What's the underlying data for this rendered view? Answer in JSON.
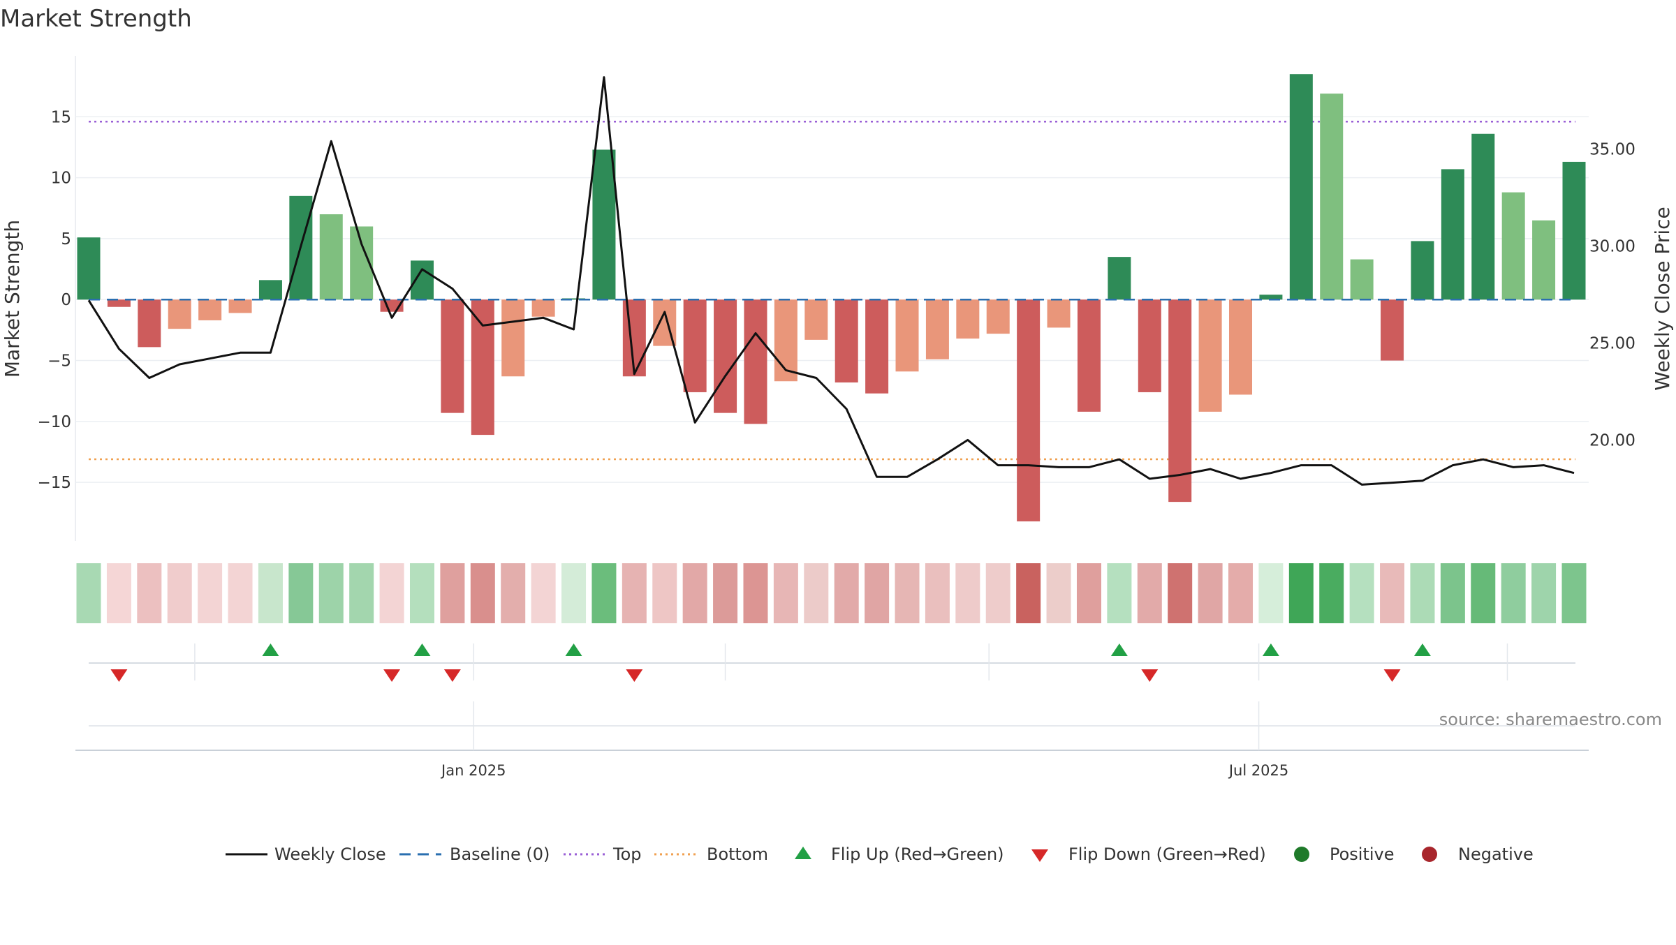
{
  "chart_data": {
    "type": "bar+line",
    "title": "Market Strength",
    "ylabel_left": "Market Strength",
    "ylabel_right": "Weekly Close Price",
    "left_ticks": [
      "15",
      "10",
      "5",
      "0",
      "−5",
      "−10",
      "−15"
    ],
    "left_tick_values": [
      15,
      10,
      5,
      0,
      -5,
      -10,
      -15
    ],
    "right_ticks": [
      "35.00",
      "30.00",
      "25.00",
      "20.00"
    ],
    "right_tick_values": [
      35,
      30,
      25,
      20
    ],
    "ylim_left": [
      -19.8,
      20.0
    ],
    "ylim_right": [
      14.8,
      39.8
    ],
    "top_line": 14.6,
    "bottom_line": -13.1,
    "baseline": 0,
    "strength": [
      5.1,
      -0.6,
      -3.9,
      -2.4,
      -1.7,
      -1.1,
      1.6,
      8.5,
      7.0,
      6.0,
      -1.0,
      3.2,
      -9.3,
      -11.1,
      -6.3,
      -1.4,
      0.1,
      12.3,
      -6.3,
      -3.8,
      -7.6,
      -9.3,
      -10.2,
      -6.7,
      -3.3,
      -6.8,
      -7.7,
      -5.9,
      -4.9,
      -3.2,
      -2.8,
      -18.2,
      -2.3,
      -9.2,
      3.5,
      -7.6,
      -16.6,
      -9.2,
      -7.8,
      0.4,
      18.5,
      16.9,
      3.3,
      -5.0,
      4.8,
      10.7,
      13.6,
      8.8,
      6.5,
      11.3
    ],
    "weekly_close": [
      27.2,
      24.7,
      23.2,
      23.9,
      24.2,
      24.5,
      24.5,
      30.0,
      35.4,
      30.1,
      26.3,
      28.8,
      27.8,
      25.9,
      26.1,
      26.3,
      25.7,
      38.7,
      23.4,
      26.6,
      20.9,
      23.3,
      25.5,
      23.6,
      23.2,
      21.6,
      18.1,
      18.1,
      19.0,
      20.0,
      18.7,
      18.7,
      18.6,
      18.6,
      19.0,
      18.0,
      18.2,
      18.5,
      18.0,
      18.3,
      18.7,
      18.7,
      17.7,
      17.8,
      17.9,
      18.7,
      19.0,
      18.6,
      18.7,
      18.3
    ],
    "heat_colors": [
      "#a8d9b3",
      "#f5d6d6",
      "#ecc0c0",
      "#f0cccc",
      "#f3d4d4",
      "#f3d4d4",
      "#c8e6cc",
      "#86c896",
      "#9dd3a9",
      "#a3d6ae",
      "#f3d4d4",
      "#b4dfbd",
      "#dfa09e",
      "#d98f8d",
      "#e3aeac",
      "#f3d4d4",
      "#d4ecd8",
      "#6bbd7c",
      "#e6b3b2",
      "#eec6c5",
      "#e2a8a7",
      "#dc9b99",
      "#dc9593",
      "#e7b6b5",
      "#eccbc9",
      "#e2aaa9",
      "#e0a5a4",
      "#e6b6b4",
      "#eabfbe",
      "#eecbca",
      "#eecccb",
      "#c9625f",
      "#eccdca",
      "#df9f9d",
      "#b5e0bf",
      "#e2aaa9",
      "#cf7270",
      "#e0a6a5",
      "#e4acaa",
      "#d6eeda",
      "#3fa657",
      "#4aac60",
      "#b5e0bf",
      "#e8bab9",
      "#acdbb6",
      "#7cc48c",
      "#66ba78",
      "#8fcd9e",
      "#9ed4ab",
      "#7dc58d"
    ],
    "flips": [
      {
        "type": "up",
        "index": 6
      },
      {
        "type": "up",
        "index": 11
      },
      {
        "type": "up",
        "index": 16
      },
      {
        "type": "up",
        "index": 34
      },
      {
        "type": "up",
        "index": 39
      },
      {
        "type": "up",
        "index": 44
      },
      {
        "type": "down",
        "index": 1
      },
      {
        "type": "down",
        "index": 10
      },
      {
        "type": "down",
        "index": 12
      },
      {
        "type": "down",
        "index": 18
      },
      {
        "type": "down",
        "index": 35
      },
      {
        "type": "down",
        "index": 43
      }
    ],
    "x_tick_labels": [
      {
        "label": "Jan 2025",
        "pos": 12.7
      },
      {
        "label": "Jul 2025",
        "pos": 38.6
      }
    ],
    "minor_tick_positions": [
      3.5,
      21.0,
      29.7,
      46.8
    ],
    "legend": [
      {
        "label": "Weekly Close",
        "kind": "line-solid",
        "color": "#111111"
      },
      {
        "label": "Baseline (0)",
        "kind": "line-dash",
        "color": "#2a6fb0"
      },
      {
        "label": "Top",
        "kind": "line-dot",
        "color": "#9a5fd6"
      },
      {
        "label": "Bottom",
        "kind": "line-dot",
        "color": "#f0a050"
      },
      {
        "label": "Flip Up (Red→Green)",
        "kind": "triangle-up",
        "color": "#22a045"
      },
      {
        "label": "Flip Down (Green→Red)",
        "kind": "triangle-down",
        "color": "#d62828"
      },
      {
        "label": "Positive",
        "kind": "dot",
        "color": "#1f7a2a"
      },
      {
        "label": "Negative",
        "kind": "dot",
        "color": "#a8262c"
      }
    ],
    "source": "source: sharemaestro.com"
  },
  "colors": {
    "pos_dark": "#2e8b57",
    "pos_light": "#7fbf7f",
    "neg_dark": "#cd5c5c",
    "neg_light": "#e9967a",
    "baseline": "#2a6fb0",
    "top": "#9a5fd6",
    "bottom": "#f0a050",
    "price_line": "#111111",
    "flip_up": "#22a045",
    "flip_down": "#d62828",
    "grid": "#eceff3",
    "axis": "#c9d0d8"
  }
}
